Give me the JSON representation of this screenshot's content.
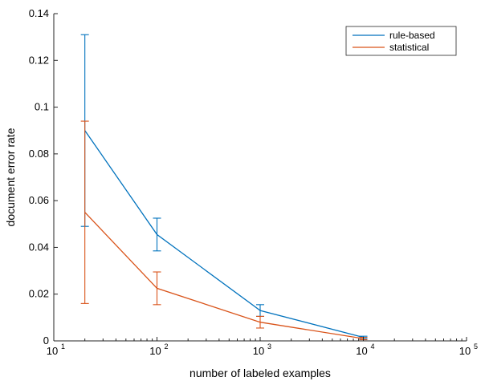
{
  "chart_data": {
    "type": "line",
    "xscale": "log",
    "xlim": [
      10,
      100000
    ],
    "ylim": [
      0,
      0.14
    ],
    "xlabel": "number of labeled examples",
    "ylabel": "document error rate",
    "xticks": [
      {
        "value": 10,
        "base": "10",
        "exp": "1"
      },
      {
        "value": 100,
        "base": "10",
        "exp": "2"
      },
      {
        "value": 1000,
        "base": "10",
        "exp": "3"
      },
      {
        "value": 10000,
        "base": "10",
        "exp": "4"
      },
      {
        "value": 100000,
        "base": "10",
        "exp": "5"
      }
    ],
    "yticks": [
      {
        "value": 0,
        "label": "0"
      },
      {
        "value": 0.02,
        "label": "0.02"
      },
      {
        "value": 0.04,
        "label": "0.04"
      },
      {
        "value": 0.06,
        "label": "0.06"
      },
      {
        "value": 0.08,
        "label": "0.08"
      },
      {
        "value": 0.1,
        "label": "0.1"
      },
      {
        "value": 0.12,
        "label": "0.12"
      },
      {
        "value": 0.14,
        "label": "0.14"
      }
    ],
    "legend_position": "top-right",
    "series": [
      {
        "name": "rule-based",
        "color": "#0072BD",
        "x": [
          20,
          100,
          1000,
          10000
        ],
        "y": [
          0.09,
          0.0455,
          0.013,
          0.0015
        ],
        "err_low": [
          0.049,
          0.0385,
          0.0105,
          0.001
        ],
        "err_high": [
          0.131,
          0.0525,
          0.0155,
          0.002
        ]
      },
      {
        "name": "statistical",
        "color": "#D95319",
        "x": [
          20,
          100,
          1000,
          10000
        ],
        "y": [
          0.055,
          0.0225,
          0.008,
          0.001
        ],
        "err_low": [
          0.016,
          0.0155,
          0.0055,
          0.0005
        ],
        "err_high": [
          0.094,
          0.0295,
          0.0105,
          0.0015
        ]
      }
    ]
  }
}
